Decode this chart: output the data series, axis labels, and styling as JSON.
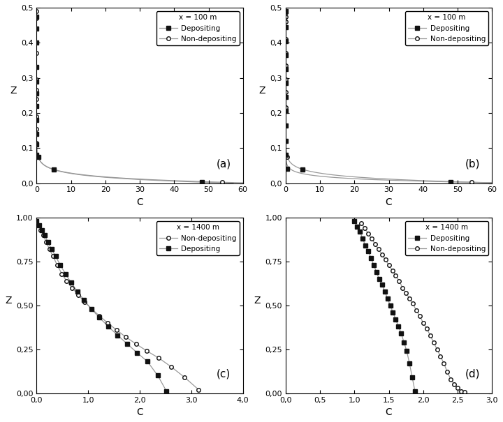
{
  "panels": [
    {
      "label": "(a)",
      "legend_order": [
        "Depositing",
        "Non-depositing"
      ],
      "legend_text": "x = 100 m",
      "xlim": [
        0,
        60
      ],
      "ylim": [
        0,
        0.5
      ],
      "xticks": [
        0,
        10,
        20,
        30,
        40,
        50,
        60
      ],
      "yticks": [
        0.0,
        0.1,
        0.2,
        0.3,
        0.4,
        0.5
      ],
      "dep_C": [
        0.0,
        0.0,
        0.0,
        0.0,
        0.0,
        0.0,
        0.0,
        0.0,
        0.0,
        0.0,
        0.0,
        0.5,
        5.0,
        48.0
      ],
      "dep_Z": [
        0.475,
        0.44,
        0.4,
        0.33,
        0.29,
        0.255,
        0.22,
        0.18,
        0.14,
        0.11,
        0.08,
        0.075,
        0.038,
        0.003
      ],
      "ndep_C": [
        0.0,
        0.0,
        0.0,
        0.0,
        0.0,
        0.0,
        0.0,
        0.0,
        0.0,
        0.0,
        0.0,
        0.5,
        5.0,
        54.0
      ],
      "ndep_Z": [
        0.49,
        0.47,
        0.44,
        0.37,
        0.33,
        0.295,
        0.265,
        0.24,
        0.19,
        0.155,
        0.115,
        0.075,
        0.038,
        0.003
      ],
      "use_smooth_line": true,
      "smooth_xlim": [
        0,
        60
      ]
    },
    {
      "label": "(b)",
      "legend_order": [
        "Depositing",
        "Non-depositing"
      ],
      "legend_text": "x = 100 m",
      "xlim": [
        0,
        60
      ],
      "ylim": [
        0,
        0.5
      ],
      "xticks": [
        0,
        10,
        20,
        30,
        40,
        50,
        60
      ],
      "yticks": [
        0.0,
        0.1,
        0.2,
        0.3,
        0.4,
        0.5
      ],
      "dep_C": [
        0.0,
        0.0,
        0.0,
        0.0,
        0.0,
        0.0,
        0.0,
        0.0,
        0.0,
        0.0,
        0.0,
        0.5,
        5.0,
        48.0
      ],
      "dep_Z": [
        0.49,
        0.445,
        0.405,
        0.365,
        0.325,
        0.285,
        0.245,
        0.205,
        0.165,
        0.12,
        0.08,
        0.04,
        0.038,
        0.003
      ],
      "ndep_C": [
        0.0,
        0.0,
        0.0,
        0.0,
        0.0,
        0.0,
        0.0,
        0.0,
        0.0,
        0.0,
        0.0,
        0.5,
        5.0,
        54.0
      ],
      "ndep_Z": [
        0.485,
        0.475,
        0.46,
        0.41,
        0.37,
        0.335,
        0.295,
        0.26,
        0.215,
        0.165,
        0.12,
        0.075,
        0.038,
        0.003
      ],
      "use_smooth_line": true,
      "smooth_xlim": [
        0,
        60
      ]
    },
    {
      "label": "(c)",
      "legend_order": [
        "Non-depositing",
        "Depositing"
      ],
      "legend_text": "x = 1400 m",
      "xlim": [
        0,
        4
      ],
      "ylim": [
        0,
        1.0
      ],
      "xticks": [
        0,
        1,
        2,
        3,
        4
      ],
      "yticks": [
        0.0,
        0.25,
        0.5,
        0.75,
        1.0
      ],
      "dep_C": [
        0.0,
        0.05,
        0.1,
        0.16,
        0.22,
        0.29,
        0.37,
        0.46,
        0.56,
        0.67,
        0.79,
        0.92,
        1.06,
        1.22,
        1.39,
        1.57,
        1.76,
        1.95,
        2.15,
        2.35,
        2.52
      ],
      "dep_Z": [
        0.98,
        0.955,
        0.93,
        0.9,
        0.86,
        0.82,
        0.78,
        0.73,
        0.68,
        0.63,
        0.58,
        0.53,
        0.48,
        0.43,
        0.38,
        0.33,
        0.28,
        0.23,
        0.18,
        0.1,
        0.01
      ],
      "ndep_C": [
        0.0,
        0.04,
        0.08,
        0.13,
        0.19,
        0.25,
        0.32,
        0.4,
        0.49,
        0.58,
        0.69,
        0.81,
        0.93,
        1.07,
        1.22,
        1.38,
        1.55,
        1.73,
        1.93,
        2.14,
        2.37,
        2.61,
        2.87,
        3.14
      ],
      "ndep_Z": [
        0.98,
        0.955,
        0.93,
        0.9,
        0.86,
        0.82,
        0.78,
        0.73,
        0.68,
        0.64,
        0.6,
        0.56,
        0.52,
        0.48,
        0.44,
        0.4,
        0.36,
        0.32,
        0.28,
        0.24,
        0.2,
        0.15,
        0.09,
        0.02
      ],
      "use_smooth_line": false,
      "smooth_xlim": [
        0,
        4
      ]
    },
    {
      "label": "(d)",
      "legend_order": [
        "Depositing",
        "Non-depositing"
      ],
      "legend_text": "x = 1400 m",
      "xlim": [
        0,
        3.0
      ],
      "ylim": [
        0,
        1.0
      ],
      "xticks": [
        0.0,
        0.5,
        1.0,
        1.5,
        2.0,
        2.5,
        3.0
      ],
      "yticks": [
        0.0,
        0.25,
        0.5,
        0.75,
        1.0
      ],
      "dep_C": [
        1.0,
        1.04,
        1.08,
        1.12,
        1.16,
        1.2,
        1.24,
        1.28,
        1.32,
        1.36,
        1.4,
        1.44,
        1.48,
        1.52,
        1.56,
        1.6,
        1.64,
        1.68,
        1.72,
        1.76,
        1.8,
        1.84,
        1.88
      ],
      "dep_Z": [
        0.98,
        0.95,
        0.92,
        0.88,
        0.84,
        0.81,
        0.77,
        0.73,
        0.69,
        0.65,
        0.62,
        0.58,
        0.54,
        0.5,
        0.46,
        0.42,
        0.38,
        0.34,
        0.29,
        0.24,
        0.17,
        0.09,
        0.01
      ],
      "ndep_C": [
        1.1,
        1.15,
        1.2,
        1.25,
        1.3,
        1.35,
        1.4,
        1.45,
        1.5,
        1.55,
        1.6,
        1.65,
        1.7,
        1.75,
        1.8,
        1.85,
        1.9,
        1.95,
        2.0,
        2.05,
        2.1,
        2.15,
        2.2,
        2.25,
        2.3,
        2.35,
        2.4,
        2.45,
        2.5,
        2.55,
        2.6
      ],
      "ndep_Z": [
        0.97,
        0.94,
        0.91,
        0.88,
        0.85,
        0.82,
        0.79,
        0.76,
        0.73,
        0.7,
        0.67,
        0.64,
        0.6,
        0.57,
        0.54,
        0.51,
        0.47,
        0.44,
        0.4,
        0.37,
        0.33,
        0.29,
        0.25,
        0.21,
        0.17,
        0.12,
        0.08,
        0.05,
        0.03,
        0.01,
        0.005
      ],
      "use_smooth_line": false,
      "smooth_xlim": [
        0,
        3.0
      ]
    }
  ],
  "line_color": "#999999",
  "dep_marker": "s",
  "ndep_marker": "o",
  "dep_color": "#111111",
  "ndep_color": "#999999",
  "dep_mfc": "#111111",
  "ndep_mfc": "white",
  "marker_size": 4,
  "linewidth": 0.9,
  "xlabel": "C",
  "ylabel": "Z",
  "tick_label_fontsize": 8,
  "axis_label_fontsize": 10,
  "legend_fontsize": 7.5,
  "label_fontsize": 11
}
